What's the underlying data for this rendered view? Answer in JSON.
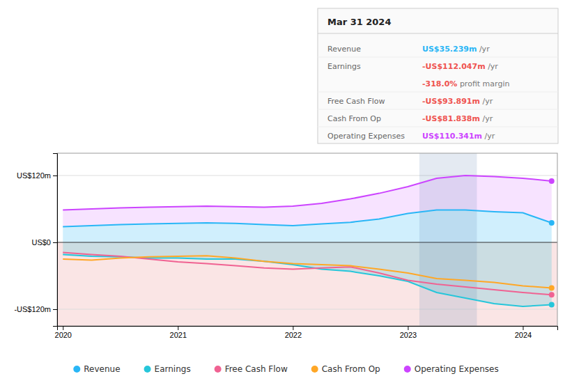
{
  "chart_data": {
    "type": "line",
    "x": [
      2020,
      2020.25,
      2020.5,
      2020.75,
      2021,
      2021.25,
      2021.5,
      2021.75,
      2022,
      2022.25,
      2022.5,
      2022.75,
      2023,
      2023.25,
      2023.5,
      2023.75,
      2024,
      2024.25
    ],
    "xlim": [
      2019.95,
      2024.3
    ],
    "xticks": [
      2020,
      2021,
      2022,
      2023,
      2024
    ],
    "ylim": [
      -150,
      160
    ],
    "yticks": [
      {
        "value": -120,
        "label": "-US$120m"
      },
      {
        "value": 0,
        "label": "US$0"
      },
      {
        "value": 120,
        "label": "US$120m"
      }
    ],
    "grid": true,
    "series": [
      {
        "name": "Revenue",
        "color": "#29b6f6",
        "values": [
          28,
          30,
          32,
          33,
          34,
          35,
          34,
          32,
          30,
          33,
          36,
          42,
          52,
          58,
          58,
          55,
          53,
          35
        ]
      },
      {
        "name": "Earnings",
        "color": "#26c6da",
        "values": [
          -22,
          -25,
          -26,
          -28,
          -28,
          -30,
          -30,
          -34,
          -40,
          -48,
          -52,
          -60,
          -70,
          -90,
          -100,
          -110,
          -115,
          -112
        ]
      },
      {
        "name": "Free Cash Flow",
        "color": "#f06292",
        "values": [
          -18,
          -22,
          -25,
          -30,
          -35,
          -38,
          -42,
          -46,
          -48,
          -46,
          -44,
          -55,
          -68,
          -75,
          -80,
          -85,
          -90,
          -94
        ]
      },
      {
        "name": "Cash From Op",
        "color": "#ffa726",
        "values": [
          -30,
          -32,
          -28,
          -26,
          -25,
          -24,
          -28,
          -34,
          -38,
          -40,
          -42,
          -48,
          -55,
          -65,
          -68,
          -72,
          -78,
          -82
        ]
      },
      {
        "name": "Operating Expenses",
        "color": "#cc44ff",
        "values": [
          58,
          60,
          62,
          63,
          64,
          65,
          64,
          63,
          65,
          70,
          78,
          88,
          100,
          115,
          120,
          118,
          115,
          110
        ]
      }
    ],
    "highlight_band": [
      2023.1,
      2023.6
    ],
    "info_box": {
      "title": "Mar 31 2024",
      "rows": [
        {
          "label": "Revenue",
          "value": "US$35.239m",
          "suffix": " /yr",
          "color": "#29b6f6"
        },
        {
          "label": "Earnings",
          "value": "-US$112.047m",
          "suffix": " /yr",
          "color": "#ef5350"
        },
        {
          "value": "-318.0%",
          "suffix": " profit margin",
          "color": "#ef5350"
        },
        {
          "label": "Free Cash Flow",
          "value": "-US$93.891m",
          "suffix": " /yr",
          "color": "#ef5350"
        },
        {
          "label": "Cash From Op",
          "value": "-US$81.838m",
          "suffix": " /yr",
          "color": "#ef5350"
        },
        {
          "label": "Operating Expenses",
          "value": "US$110.341m",
          "suffix": " /yr",
          "color": "#cc44ff"
        }
      ]
    }
  }
}
